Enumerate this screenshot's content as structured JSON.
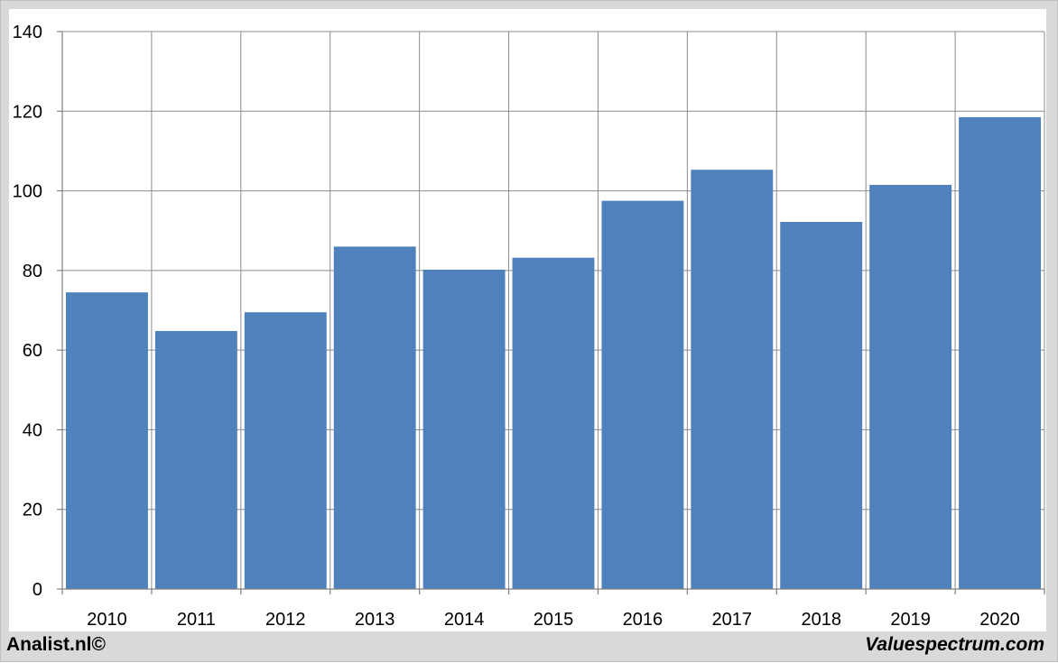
{
  "chart_data": {
    "type": "bar",
    "categories": [
      "2010",
      "2011",
      "2012",
      "2013",
      "2014",
      "2015",
      "2016",
      "2017",
      "2018",
      "2019",
      "2020"
    ],
    "values": [
      74.5,
      64.8,
      69.5,
      86.0,
      80.2,
      83.2,
      97.5,
      105.3,
      92.2,
      101.5,
      118.5
    ],
    "title": "",
    "xlabel": "",
    "ylabel": "",
    "ylim": [
      0,
      140
    ],
    "yticks": [
      0,
      20,
      40,
      60,
      80,
      100,
      120,
      140
    ],
    "grid": "on",
    "bar_color": "#4f81bd"
  },
  "footer": {
    "left_text": "Analist.nl©",
    "right_text": "Valuespectrum.com"
  }
}
